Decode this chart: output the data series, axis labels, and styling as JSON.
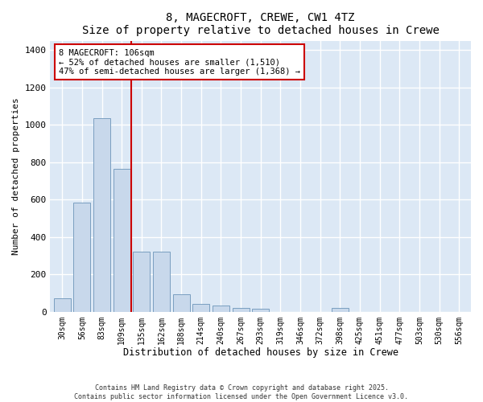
{
  "title1": "8, MAGECROFT, CREWE, CW1 4TZ",
  "title2": "Size of property relative to detached houses in Crewe",
  "xlabel": "Distribution of detached houses by size in Crewe",
  "ylabel": "Number of detached properties",
  "bar_color": "#c8d8eb",
  "bar_edge_color": "#7a9fc0",
  "background_color": "#dce8f5",
  "grid_color": "#ffffff",
  "fig_background": "#ffffff",
  "categories": [
    "30sqm",
    "56sqm",
    "83sqm",
    "109sqm",
    "135sqm",
    "162sqm",
    "188sqm",
    "214sqm",
    "240sqm",
    "267sqm",
    "293sqm",
    "319sqm",
    "346sqm",
    "372sqm",
    "398sqm",
    "425sqm",
    "451sqm",
    "477sqm",
    "503sqm",
    "530sqm",
    "556sqm"
  ],
  "values": [
    70,
    585,
    1035,
    765,
    320,
    320,
    95,
    40,
    35,
    20,
    15,
    0,
    0,
    0,
    20,
    0,
    0,
    0,
    0,
    0,
    0
  ],
  "ylim": [
    0,
    1450
  ],
  "yticks": [
    0,
    200,
    400,
    600,
    800,
    1000,
    1200,
    1400
  ],
  "red_line_x": 3.5,
  "annotation_title": "8 MAGECROFT: 106sqm",
  "annotation_line1": "← 52% of detached houses are smaller (1,510)",
  "annotation_line2": "47% of semi-detached houses are larger (1,368) →",
  "annotation_box_color": "#ffffff",
  "annotation_border_color": "#cc0000",
  "red_line_color": "#cc0000",
  "footer1": "Contains HM Land Registry data © Crown copyright and database right 2025.",
  "footer2": "Contains public sector information licensed under the Open Government Licence v3.0."
}
